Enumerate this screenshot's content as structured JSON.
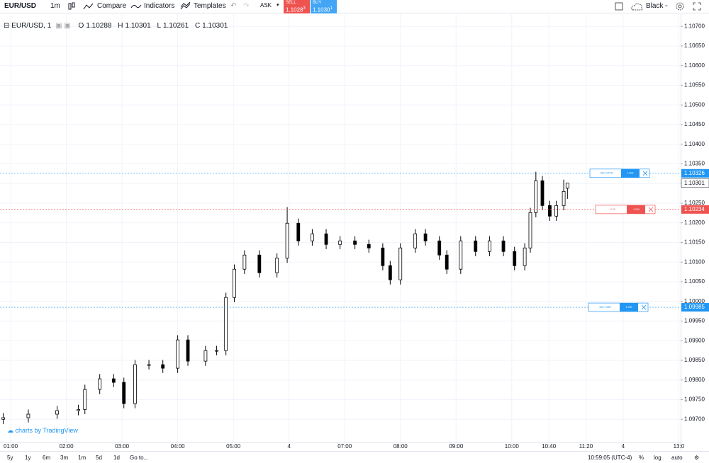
{
  "toolbar": {
    "symbol": "EUR/USD",
    "interval": "1m",
    "compare": "Compare",
    "indicators": "Indicators",
    "templates": "Templates",
    "side": "ASK",
    "sell": {
      "label": "SELL",
      "price": "1.1028",
      "pip": "3"
    },
    "buy": {
      "label": "BUY",
      "price": "1.1030",
      "pip": "1"
    },
    "theme": "Black"
  },
  "legend": {
    "symbol": "EUR/USD, 1",
    "o": "O",
    "h": "H",
    "l": "L",
    "c": "C"
  },
  "watermark": "charts by TradingView",
  "bottom": {
    "ranges": [
      "5y",
      "1y",
      "6m",
      "3m",
      "1m",
      "5d",
      "1d"
    ],
    "goto": "Go to...",
    "clock": "10:59:05 (UTC-4)",
    "percent": "%",
    "log": "log",
    "auto": "auto"
  },
  "orders": [
    {
      "texts": [
        "BUY STOP",
        "1.000"
      ],
      "color": "#2196f3"
    },
    {
      "texts": [
        "-0.23",
        "-1.000"
      ],
      "color": "#ef5350"
    },
    {
      "texts": [
        "BUY LIMIT",
        "1.000"
      ],
      "color": "#2196f3"
    }
  ],
  "chart_data": {
    "type": "candlestick",
    "up_color": "#ffffff",
    "down_color": "#000000",
    "border_color": "#000000",
    "xlim": [
      -11.5,
      722
    ],
    "ylim": [
      1.09641,
      1.10731
    ],
    "xticks": [
      {
        "value": 0,
        "label": "01:00"
      },
      {
        "value": 60,
        "label": "02:00"
      },
      {
        "value": 120,
        "label": "03:00"
      },
      {
        "value": 180,
        "label": "04:00"
      },
      {
        "value": 240,
        "label": "05:00"
      },
      {
        "value": 300,
        "label": "4"
      },
      {
        "value": 360,
        "label": "07:00"
      },
      {
        "value": 420,
        "label": "08:00"
      },
      {
        "value": 480,
        "label": "09:00"
      },
      {
        "value": 540,
        "label": "10:00"
      },
      {
        "value": 580,
        "label": "10:40"
      },
      {
        "value": 620,
        "label": "11:20"
      },
      {
        "value": 660,
        "label": "4"
      },
      {
        "value": 720,
        "label": "13:0"
      }
    ],
    "yticks": [
      {
        "value": 1.097,
        "label": "1.09700"
      },
      {
        "value": 1.0975,
        "label": "1.09750"
      },
      {
        "value": 1.098,
        "label": "1.09800"
      },
      {
        "value": 1.0985,
        "label": "1.09850"
      },
      {
        "value": 1.099,
        "label": "1.09900"
      },
      {
        "value": 1.0995,
        "label": "1.09950"
      },
      {
        "value": 1.1,
        "label": "1.10000"
      },
      {
        "value": 1.1005,
        "label": "1.10050"
      },
      {
        "value": 1.101,
        "label": "1.10100"
      },
      {
        "value": 1.1015,
        "label": "1.10150"
      },
      {
        "value": 1.102,
        "label": "1.10200"
      },
      {
        "value": 1.1025,
        "label": "1.10250"
      },
      {
        "value": 1.103,
        "label": "1.10300"
      },
      {
        "value": 1.1035,
        "label": "1.10350"
      },
      {
        "value": 1.104,
        "label": "1.10400"
      },
      {
        "value": 1.1045,
        "label": "1.10450"
      },
      {
        "value": 1.105,
        "label": "1.10500"
      },
      {
        "value": 1.1055,
        "label": "1.10550"
      },
      {
        "value": 1.106,
        "label": "1.10600"
      },
      {
        "value": 1.1065,
        "label": "1.10650"
      },
      {
        "value": 1.107,
        "label": "1.10700"
      }
    ],
    "x": [
      -8,
      19,
      50,
      73,
      80,
      96,
      111,
      122,
      134,
      149,
      164,
      180,
      191,
      210,
      222,
      232,
      241,
      252,
      268,
      287,
      298,
      310,
      325,
      340,
      355,
      371,
      386,
      401,
      409,
      420,
      436,
      447,
      462,
      470,
      485,
      501,
      516,
      531,
      543,
      554,
      560,
      566,
      573,
      581,
      588,
      596,
      600
    ],
    "open": [
      1.097,
      1.09704,
      1.09713,
      1.09722,
      1.09725,
      1.09776,
      1.09803,
      1.09794,
      1.0974,
      1.09839,
      1.09839,
      1.0983,
      1.09902,
      1.09848,
      1.09875,
      1.09875,
      1.1001,
      1.10082,
      1.10118,
      1.10073,
      1.1011,
      1.10199,
      1.10154,
      1.10172,
      1.10145,
      1.10154,
      1.10145,
      1.10136,
      1.10091,
      1.10055,
      1.10136,
      1.10172,
      1.10154,
      1.10118,
      1.10082,
      1.10154,
      1.10127,
      1.10154,
      1.10127,
      1.10091,
      1.10136,
      1.10226,
      1.10307,
      1.10244,
      1.10217,
      1.10244,
      1.10288
    ],
    "high": [
      1.09716,
      1.09725,
      1.09734,
      1.09737,
      1.09788,
      1.09815,
      1.09815,
      1.09806,
      1.09851,
      1.09851,
      1.09851,
      1.09914,
      1.09914,
      1.09887,
      1.09887,
      1.10022,
      1.10094,
      1.1013,
      1.1013,
      1.10122,
      1.1024,
      1.10211,
      1.10184,
      1.10184,
      1.10166,
      1.10166,
      1.10157,
      1.10148,
      1.10103,
      1.10148,
      1.10184,
      1.10184,
      1.10166,
      1.1013,
      1.10166,
      1.10166,
      1.10166,
      1.10166,
      1.10139,
      1.10148,
      1.10238,
      1.1033,
      1.10319,
      1.10256,
      1.10256,
      1.1031,
      1.10301
    ],
    "low": [
      1.09688,
      1.09692,
      1.09701,
      1.0971,
      1.09713,
      1.09764,
      1.09782,
      1.09728,
      1.09728,
      1.09827,
      1.09818,
      1.09818,
      1.09836,
      1.09836,
      1.09863,
      1.09863,
      1.09998,
      1.1007,
      1.10061,
      1.10061,
      1.10098,
      1.10142,
      1.10142,
      1.10133,
      1.10133,
      1.10133,
      1.10124,
      1.10079,
      1.10043,
      1.10043,
      1.10124,
      1.10142,
      1.10106,
      1.1007,
      1.1007,
      1.10115,
      1.10115,
      1.10115,
      1.10079,
      1.10079,
      1.10124,
      1.10214,
      1.10232,
      1.10205,
      1.10205,
      1.10232,
      1.10261
    ],
    "close": [
      1.09704,
      1.09713,
      1.09722,
      1.09725,
      1.09776,
      1.09803,
      1.09794,
      1.0974,
      1.09839,
      1.09839,
      1.0983,
      1.09902,
      1.09848,
      1.09875,
      1.09875,
      1.1001,
      1.10082,
      1.10118,
      1.10073,
      1.1011,
      1.10199,
      1.10154,
      1.10172,
      1.10145,
      1.10154,
      1.10145,
      1.10136,
      1.10091,
      1.10055,
      1.10136,
      1.10172,
      1.10154,
      1.10118,
      1.10082,
      1.10154,
      1.10127,
      1.10154,
      1.10127,
      1.10091,
      1.10136,
      1.10226,
      1.10307,
      1.10244,
      1.10217,
      1.10244,
      1.1028,
      1.10301
    ],
    "price_lines": [
      {
        "value": 1.10326,
        "color": "#2196f3"
      },
      {
        "value": 1.10234,
        "color": "#ef5350"
      },
      {
        "value": 1.09985,
        "color": "#2196f3"
      }
    ]
  }
}
